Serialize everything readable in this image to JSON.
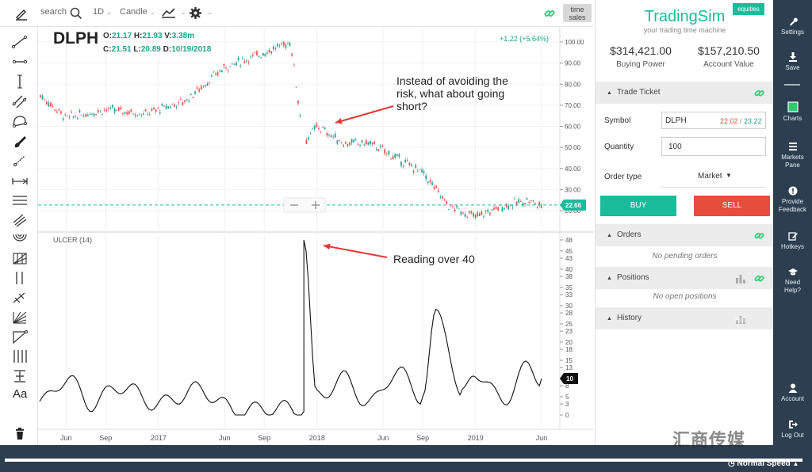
{
  "toolbar": {
    "search_label": "search",
    "interval": "1D",
    "chart_type": "Candle",
    "time_sales": [
      "time",
      "sales"
    ]
  },
  "symbol_header": {
    "symbol": "DLPH",
    "row1": [
      {
        "label": "O:",
        "value": "21.17"
      },
      {
        "label": "H:",
        "value": "21.93"
      },
      {
        "label": "V:",
        "value": "3.38m"
      }
    ],
    "row2": [
      {
        "label": "C:",
        "value": "21.51"
      },
      {
        "label": "L:",
        "value": "20.89"
      },
      {
        "label": "D:",
        "value": "10/19/2018"
      }
    ],
    "change": "+1.22 (+5.64%)"
  },
  "annotations": {
    "callout_1": [
      "Instead of avoiding the",
      "risk, what about going",
      "short?"
    ],
    "callout_2": "Reading over 40"
  },
  "colors": {
    "up": "#26a69a",
    "down": "#ef5350",
    "accent": "#1abc9c",
    "nav_bg": "#2c3e50",
    "arrow": "#e53935"
  },
  "chart_data": {
    "type": "candlestick",
    "price_axis": {
      "ticks": [
        "100.00",
        "90.00",
        "80.00",
        "70.00",
        "60.00",
        "50.00",
        "40.00",
        "30.00",
        "20.00"
      ],
      "last_price": "22.66"
    },
    "x_axis": {
      "ticks": [
        "Jun",
        "Sep",
        "2017",
        "Jun",
        "Sep",
        "2018",
        "Jun",
        "Sep",
        "2019",
        "Jun"
      ]
    },
    "price_series_approx": [
      {
        "x": "2016-04",
        "y": 75
      },
      {
        "x": "2016-06",
        "y": 64
      },
      {
        "x": "2016-09",
        "y": 68
      },
      {
        "x": "2016-12",
        "y": 66
      },
      {
        "x": "2017-03",
        "y": 72
      },
      {
        "x": "2017-06",
        "y": 88
      },
      {
        "x": "2017-09",
        "y": 95
      },
      {
        "x": "2017-11",
        "y": 100
      },
      {
        "x": "2017-12",
        "y": 52
      },
      {
        "x": "2018-01",
        "y": 60
      },
      {
        "x": "2018-03",
        "y": 52
      },
      {
        "x": "2018-05",
        "y": 52
      },
      {
        "x": "2018-07",
        "y": 45
      },
      {
        "x": "2018-09",
        "y": 38
      },
      {
        "x": "2018-11",
        "y": 22
      },
      {
        "x": "2019-01",
        "y": 17
      },
      {
        "x": "2019-03",
        "y": 22
      },
      {
        "x": "2019-05",
        "y": 25
      },
      {
        "x": "2019-06",
        "y": 22
      }
    ],
    "indicator": {
      "name": "ULCER (14)",
      "ticks": [
        "48",
        "45",
        "43",
        "40",
        "38",
        "35",
        "33",
        "30",
        "28",
        "25",
        "23",
        "20",
        "18",
        "15",
        "13",
        "10",
        "8",
        "5",
        "3",
        "0"
      ],
      "last_value": "10",
      "series_approx": [
        {
          "x": "2016-04",
          "y": 3
        },
        {
          "x": "2016-06",
          "y": 10
        },
        {
          "x": "2016-08",
          "y": 3
        },
        {
          "x": "2016-10",
          "y": 8
        },
        {
          "x": "2017-01",
          "y": 3
        },
        {
          "x": "2017-04",
          "y": 7
        },
        {
          "x": "2017-07",
          "y": 1
        },
        {
          "x": "2017-10",
          "y": 2
        },
        {
          "x": "2017-12",
          "y": 1
        },
        {
          "x": "2017-12",
          "y": 48
        },
        {
          "x": "2018-01",
          "y": 5
        },
        {
          "x": "2018-03",
          "y": 10
        },
        {
          "x": "2018-05",
          "y": 3
        },
        {
          "x": "2018-07",
          "y": 12
        },
        {
          "x": "2018-09",
          "y": 5
        },
        {
          "x": "2018-10",
          "y": 29
        },
        {
          "x": "2018-12",
          "y": 5
        },
        {
          "x": "2019-01",
          "y": 12
        },
        {
          "x": "2019-03",
          "y": 4
        },
        {
          "x": "2019-05",
          "y": 13
        },
        {
          "x": "2019-06",
          "y": 10
        }
      ]
    }
  },
  "panel": {
    "brand": "TradingSim",
    "brand_tag": "equities",
    "tagline": "your trading time machine",
    "buying_power_value": "$314,421.00",
    "buying_power_label": "Buying Power",
    "account_value_value": "$157,210.50",
    "account_value_label": "Account Value",
    "trade_ticket": "Trade Ticket",
    "symbol_label": "Symbol",
    "symbol_value": "DLPH",
    "bid": "22.02",
    "ask": "23.22",
    "quantity_label": "Quantity",
    "quantity_value": "100",
    "order_type_label": "Order type",
    "order_type_value": "Market",
    "buy": "BUY",
    "sell": "SELL",
    "orders": "Orders",
    "orders_empty": "No pending orders",
    "positions": "Positions",
    "positions_empty": "No open positions",
    "history": "History"
  },
  "nav": [
    {
      "id": "settings",
      "label": [
        "Settings"
      ]
    },
    {
      "id": "save",
      "label": [
        "Save"
      ]
    },
    {
      "id": "charts",
      "label": [
        "Charts"
      ]
    },
    {
      "id": "markets-pane",
      "label": [
        "Markets",
        "Pane"
      ]
    },
    {
      "id": "provide-feedback",
      "label": [
        "Provide",
        "Feedback"
      ]
    },
    {
      "id": "hotkeys",
      "label": [
        "Hotkeys"
      ]
    },
    {
      "id": "need-help",
      "label": [
        "Need",
        "Help?"
      ]
    },
    {
      "id": "account",
      "label": [
        "Account"
      ]
    },
    {
      "id": "log-out",
      "label": [
        "Log Out"
      ]
    }
  ],
  "bottom": {
    "speed": "Normal Speed"
  },
  "watermark": "汇商传媒"
}
